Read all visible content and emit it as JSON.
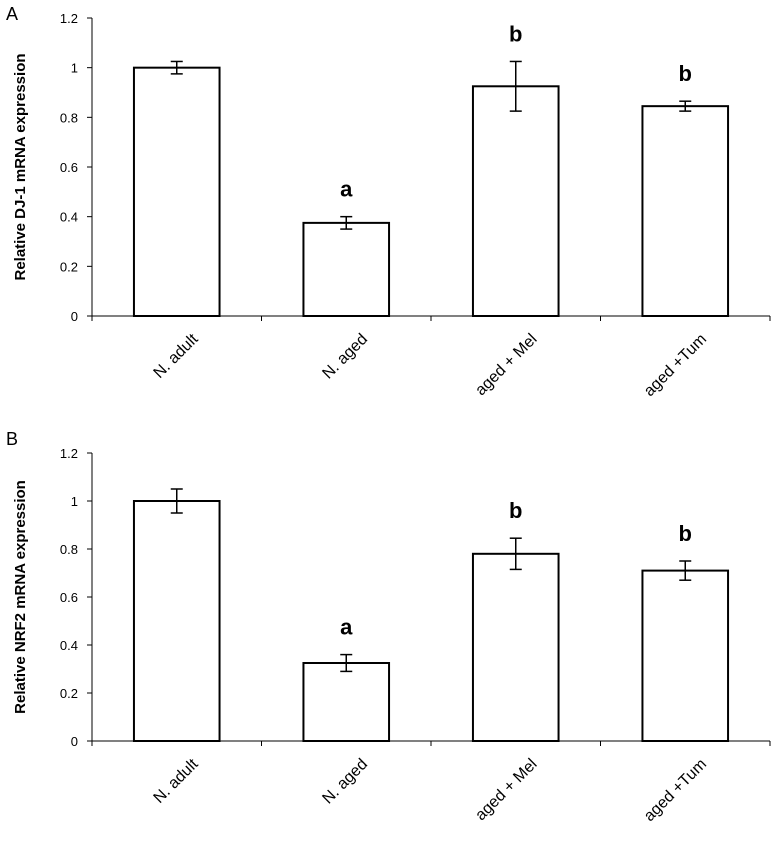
{
  "chart_data": [
    {
      "panel": "A",
      "type": "bar",
      "ylabel": "Relative DJ-1 mRNA expression",
      "ylim": [
        0,
        1.2
      ],
      "yticks": [
        "0",
        "0.2",
        "0.4",
        "0.6",
        "0.8",
        "1",
        "1.2"
      ],
      "categories": [
        "N. adult",
        "N. aged",
        "aged + Mel",
        "aged +Tum"
      ],
      "values": [
        1.0,
        0.375,
        0.925,
        0.845
      ],
      "errors": [
        0.025,
        0.025,
        0.1,
        0.02
      ],
      "annotations": [
        "",
        "a",
        "b",
        "b"
      ],
      "bar_fill": "#ffffff",
      "bar_stroke": "#000000",
      "grid": false
    },
    {
      "panel": "B",
      "type": "bar",
      "ylabel": "Relative NRF2 mRNA expression",
      "ylim": [
        0,
        1.2
      ],
      "yticks": [
        "0",
        "0.2",
        "0.4",
        "0.6",
        "0.8",
        "1",
        "1.2"
      ],
      "categories": [
        "N. adult",
        "N. aged",
        "aged + Mel",
        "aged +Tum"
      ],
      "values": [
        1.0,
        0.325,
        0.78,
        0.71
      ],
      "errors": [
        0.05,
        0.035,
        0.065,
        0.04
      ],
      "annotations": [
        "",
        "a",
        "b",
        "b"
      ],
      "bar_fill": "#ffffff",
      "bar_stroke": "#000000",
      "grid": false
    }
  ]
}
